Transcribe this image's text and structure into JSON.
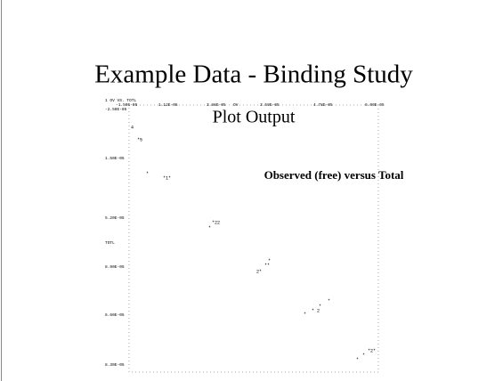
{
  "slide": {
    "title": "Example Data - Binding Study",
    "subtitle": "Plot Output",
    "annotation": "Observed (free) versus Total"
  },
  "plot": {
    "header": "1        OV VS. TOTL",
    "x_labels": [
      "-1.50E-05",
      "1.12E-05",
      "3.86E-05",
      "OV",
      "3.59E-05",
      "4.78E-05",
      "6.00E-05"
    ],
    "y_labels": [
      "-2.50E-05",
      "1.50E-05",
      "5.20E-05",
      "TOTL",
      "8.90E-05",
      "6.60E-05",
      "8.30E-05"
    ],
    "markers": [
      "4",
      "*5",
      "*",
      "*1*",
      "*22",
      "*",
      "*",
      "**",
      "2*",
      "*",
      "*",
      "* 2",
      "*",
      "*2*",
      "*",
      "*"
    ]
  }
}
